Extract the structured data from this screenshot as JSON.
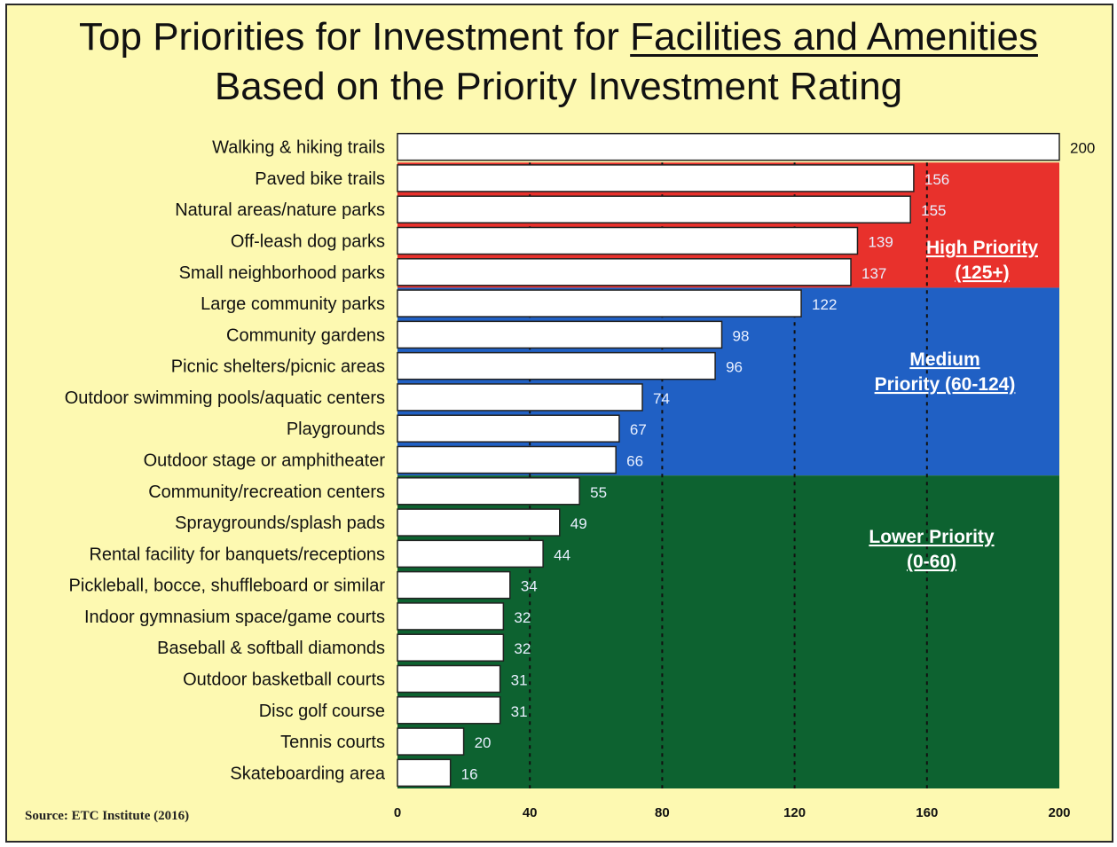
{
  "title": {
    "line1_prefix": "Top Priorities for Investment for ",
    "line1_underlined": "Facilities and Amenities",
    "line2": "Based on the Priority Investment Rating"
  },
  "source": "Source:  ETC Institute (2016)",
  "chart_data": {
    "type": "bar",
    "orientation": "horizontal",
    "categories": [
      "Walking & hiking trails",
      "Paved bike trails",
      "Natural areas/nature parks",
      "Off-leash dog parks",
      "Small neighborhood parks",
      "Large community parks",
      "Community gardens",
      "Picnic shelters/picnic areas",
      "Outdoor swimming pools/aquatic centers",
      "Playgrounds",
      "Outdoor stage or amphitheater",
      "Community/recreation centers",
      "Spraygrounds/splash pads",
      "Rental facility for banquets/receptions",
      "Pickleball, bocce, shuffleboard or similar",
      "Indoor gymnasium space/game courts",
      "Baseball & softball diamonds",
      "Outdoor basketball courts",
      "Disc golf course",
      "Tennis courts",
      "Skateboarding area"
    ],
    "values": [
      200,
      156,
      155,
      139,
      137,
      122,
      98,
      96,
      74,
      67,
      66,
      55,
      49,
      44,
      34,
      32,
      32,
      31,
      31,
      20,
      16
    ],
    "xlim": [
      0,
      200
    ],
    "xticks": [
      0,
      40,
      80,
      120,
      160,
      200
    ],
    "gridlines": [
      40,
      80,
      120,
      160
    ],
    "bar_color": "#ffffff",
    "zones": [
      {
        "name": "High Priority",
        "range_label": "(125+)",
        "color": "#e8312c",
        "category_span": [
          1,
          4
        ]
      },
      {
        "name": "Medium Priority (60-124)",
        "color": "#2060c4",
        "category_span": [
          5,
          10
        ]
      },
      {
        "name": "Lower Priority",
        "range_label": "(0-60)",
        "color": "#0d6230",
        "category_span": [
          11,
          20
        ]
      }
    ]
  }
}
